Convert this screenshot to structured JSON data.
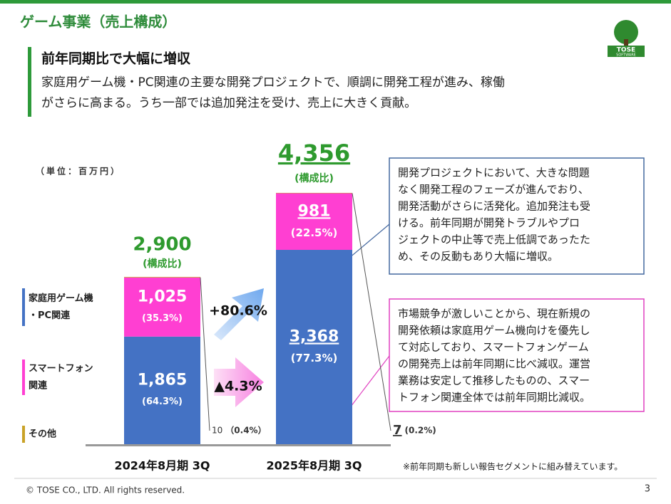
{
  "header": {
    "title": "ゲーム事業（売上構成）",
    "logo": [
      "TOSE",
      "SOFTWARE"
    ]
  },
  "headline": "前年同期比で大幅に増収",
  "body": [
    "家庭用ゲーム機・PC関連の主要な開発プロジェクトで、順調に開発工程が進み、稼働",
    "がさらに高まる。うち一部では追加発注を受け、売上に大きく貢献。"
  ],
  "chart_data": {
    "type": "bar",
    "stacked": true,
    "unit": "（単位：百万円）",
    "categories": [
      "2024年8月期 3Q",
      "2025年8月期 3Q"
    ],
    "series": [
      {
        "name": [
          "家庭用ゲーム機",
          "・PC関連"
        ],
        "color": "#4472c4",
        "values": [
          1865,
          3368
        ],
        "value_labels": [
          "1,865",
          "3,368"
        ],
        "share_labels": [
          "(64.3%)",
          "(77.3%)"
        ]
      },
      {
        "name": [
          "スマートフォン",
          "関連"
        ],
        "color": "#ff3fd2",
        "values": [
          1025,
          981
        ],
        "value_labels": [
          "1,025",
          "981"
        ],
        "share_labels": [
          "(35.3%)",
          "(22.5%)"
        ]
      },
      {
        "name": [
          "その他"
        ],
        "color": "#c9a227",
        "values": [
          10,
          7
        ],
        "value_labels": [
          "10",
          "7"
        ],
        "share_labels": [
          "（0.4%）",
          "(0.2%)"
        ]
      }
    ],
    "totals": [
      2900,
      4356
    ],
    "total_labels": [
      "2,900",
      "4,356"
    ],
    "total_note": "(構成比)",
    "changes": [
      "+80.6%",
      "▲4.3%"
    ],
    "ylim": [
      0,
      4750
    ]
  },
  "callouts": [
    [
      "開発プロジェクトにおいて、大きな問題",
      "なく開発工程のフェーズが進んでおり、",
      "開発活動がさらに活発化。追加発注も受",
      "ける。前年同期が開発トラブルやプロ",
      "ジェクトの中止等で売上低調であったた",
      "め、その反動もあり大幅に増収。"
    ],
    [
      "市場競争が激しいことから、現在新規の",
      "開発依頼は家庭用ゲーム機向けを優先し",
      "て対応しており、スマートフォンゲーム",
      "の開発売上は前年同期に比べ減収。運営",
      "業務は安定して推移したものの、スマー",
      "トフォン関連全体では前年同期比減収。"
    ]
  ],
  "footnote": "※前年同期も新しい報告セグメントに組み替えています。",
  "footer": {
    "copyright": "© TOSE CO., LTD. All rights reserved.",
    "page": "3"
  }
}
